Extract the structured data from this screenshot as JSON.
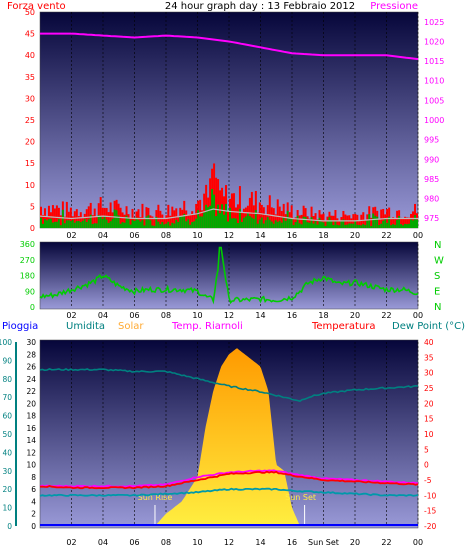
{
  "colors": {
    "bg_top": "#06063a",
    "bg_bottom": "#9a9ad8",
    "wind": "#ff0000",
    "wind_gust": "#00aa00",
    "pressure": "#ff00ff",
    "direction": "#00cc00",
    "humidity": "#008080",
    "solar": "#ffcc00",
    "temperature": "#ff0000",
    "dewpoint": "#008080",
    "rain": "#0000ff",
    "windchill": "#ff00ff"
  },
  "chart_data": [
    {
      "type": "line",
      "title": "24 hour graph day : 13 Febbraio 2012",
      "left_label": "Forza vento",
      "right_label": "Pressione",
      "x_ticks": [
        "02",
        "04",
        "06",
        "08",
        "10",
        "12",
        "14",
        "16",
        "18",
        "20",
        "22",
        "00"
      ],
      "y_left_ticks": [
        "0",
        "5",
        "10",
        "15",
        "20",
        "25",
        "30",
        "35",
        "40",
        "45",
        "50"
      ],
      "y_right_ticks": [
        "975",
        "980",
        "985",
        "990",
        "995",
        "1000",
        "1005",
        "1010",
        "1015",
        "1020",
        "1025"
      ],
      "ylim_left": [
        0,
        50
      ],
      "ylim_right": [
        972.5,
        1027.5
      ],
      "series": [
        {
          "name": "Forza vento",
          "x": [
            0,
            2,
            4,
            6,
            8,
            10,
            11,
            12,
            14,
            16,
            18,
            20,
            22,
            24
          ],
          "values": [
            5,
            4,
            5,
            4,
            4,
            6,
            8,
            7,
            6,
            4,
            3,
            3,
            4,
            4
          ]
        },
        {
          "name": "Pressione",
          "x": [
            0,
            2,
            4,
            6,
            8,
            10,
            12,
            14,
            16,
            18,
            20,
            22,
            24
          ],
          "values": [
            1022,
            1022,
            1021.5,
            1021,
            1021.5,
            1021,
            1020,
            1018.5,
            1017,
            1016.5,
            1016.5,
            1016.5,
            1015.5
          ]
        }
      ]
    },
    {
      "type": "line",
      "y_ticks": [
        "0",
        "90",
        "180",
        "270",
        "360"
      ],
      "ylim": [
        0,
        360
      ],
      "right_labels": [
        "N",
        "W",
        "S",
        "E",
        "N"
      ],
      "x_ticks": [
        "02",
        "04",
        "06",
        "08",
        "10",
        "12",
        "14",
        "16",
        "18",
        "20",
        "22",
        "00"
      ],
      "series": [
        {
          "name": "direction",
          "x": [
            0,
            1,
            2,
            3,
            3.5,
            4,
            5,
            6,
            7,
            8,
            9,
            10,
            10.5,
            11,
            11.5,
            12,
            13,
            14,
            15,
            16,
            16.5,
            17,
            18,
            19,
            20,
            21,
            22,
            23,
            24
          ],
          "values": [
            60,
            70,
            100,
            130,
            150,
            180,
            120,
            90,
            100,
            100,
            100,
            90,
            60,
            40,
            340,
            40,
            40,
            45,
            40,
            55,
            90,
            135,
            170,
            130,
            140,
            120,
            100,
            100,
            80
          ]
        }
      ]
    },
    {
      "type": "area",
      "labels": [
        "Pioggia",
        "Umidita",
        "Solar",
        "Temp. Riarnoli",
        "Temperatura",
        "Dew Point (°C)"
      ],
      "x_ticks": [
        "02",
        "04",
        "06",
        "08",
        "10",
        "12",
        "14",
        "16",
        "Sun Set",
        "20",
        "22",
        "00"
      ],
      "y_rain_ticks": [
        "0",
        "10",
        "20",
        "30",
        "40",
        "50",
        "60",
        "70",
        "80",
        "90",
        "100"
      ],
      "y_humidity_ticks": [
        "0",
        "2",
        "4",
        "6",
        "8",
        "10",
        "12",
        "14",
        "16",
        "18",
        "20",
        "22",
        "24",
        "26",
        "28",
        "30"
      ],
      "y_temp_ticks": [
        "40",
        "35",
        "30",
        "25",
        "20",
        "15",
        "10",
        "5",
        "0",
        "-5",
        "-10",
        "-15",
        "-20"
      ],
      "ylim_temp": [
        -20,
        40
      ],
      "ylim_humidity": [
        0,
        30
      ],
      "annotations": [
        "Sun Rise",
        "Sun Set"
      ],
      "series": [
        {
          "name": "Umidita",
          "x": [
            0,
            2,
            4,
            6,
            8,
            10,
            12,
            14,
            16,
            16.5,
            17,
            18,
            20,
            22,
            24
          ],
          "values": [
            85,
            85,
            85,
            84,
            84,
            80,
            76,
            73,
            69,
            68,
            70,
            72,
            74,
            75,
            76
          ]
        },
        {
          "name": "Solar",
          "x": [
            7.3,
            8,
            9,
            10,
            10.5,
            11,
            11.5,
            12,
            12.5,
            13,
            13.5,
            14,
            14.5,
            15,
            15.5,
            16,
            16.5
          ],
          "values": [
            0,
            2,
            4,
            8,
            16,
            22,
            26,
            28,
            29,
            28,
            27,
            26,
            22,
            10,
            9,
            3,
            0
          ]
        },
        {
          "name": "Temp. Riarnoli",
          "x": [
            0,
            2,
            4,
            6,
            8,
            10,
            12,
            14,
            15,
            16,
            18,
            20,
            22,
            24
          ],
          "values": [
            -7,
            -7,
            -7,
            -7,
            -6.5,
            -4,
            -2.5,
            -2,
            -2,
            -3,
            -4.5,
            -5,
            -5.5,
            -6
          ]
        },
        {
          "name": "Temperatura",
          "x": [
            0,
            2,
            4,
            6,
            8,
            10,
            12,
            14,
            15,
            16,
            18,
            20,
            22,
            24
          ],
          "values": [
            -7,
            -7.5,
            -7.5,
            -7.5,
            -7,
            -5,
            -3,
            -2.5,
            -2.5,
            -3.5,
            -5,
            -5.5,
            -6,
            -6.5
          ]
        },
        {
          "name": "Dew Point (°C)",
          "x": [
            0,
            2,
            4,
            6,
            8,
            10,
            12,
            14,
            15,
            16,
            18,
            20,
            22,
            24
          ],
          "values": [
            -10,
            -10,
            -10,
            -10,
            -9.5,
            -9,
            -8,
            -8,
            -8,
            -8.5,
            -9,
            -9.5,
            -10,
            -10
          ]
        }
      ]
    }
  ]
}
